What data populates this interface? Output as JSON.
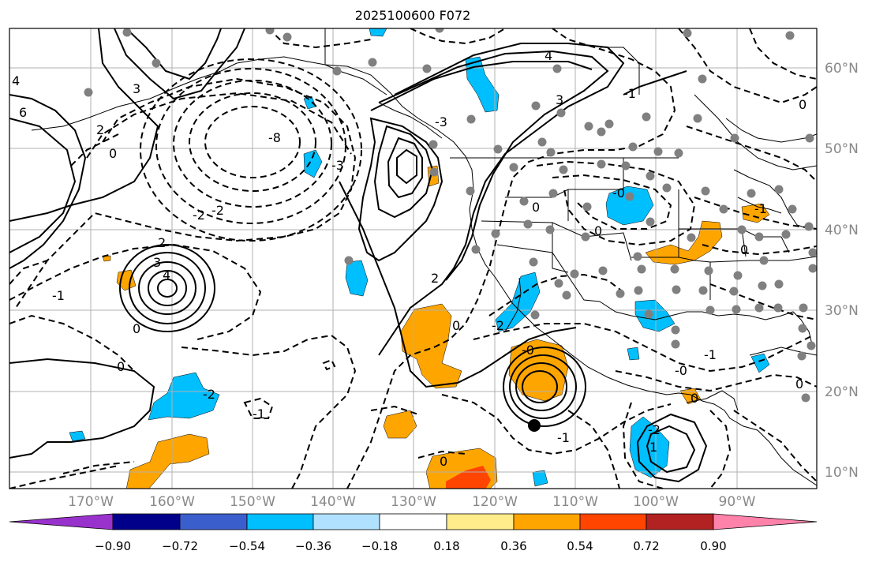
{
  "title": "2025100600 F072",
  "longitude_labels": [
    "170°W",
    "160°W",
    "150°W",
    "140°W",
    "130°W",
    "120°W",
    "110°W",
    "100°W",
    "90°W"
  ],
  "latitude_labels": [
    "60°N",
    "50°N",
    "40°N",
    "30°N",
    "20°N",
    "10°N"
  ],
  "colorbar": {
    "ticks": [
      "−0.90",
      "−0.72",
      "−0.54",
      "−0.36",
      "−0.18",
      "0.18",
      "0.36",
      "0.54",
      "0.72",
      "0.90"
    ],
    "colors": [
      "#9932cc",
      "#00008b",
      "#3a5fcd",
      "#00bfff",
      "#b0e2ff",
      "#ffffff",
      "#ffec8b",
      "#ffa500",
      "#ff4500",
      "#b22222",
      "#ff82ab"
    ]
  },
  "contour_labels": [
    "6",
    "4",
    "3",
    "2",
    "0",
    "-8",
    "-3",
    "-2",
    "2",
    "4",
    "3",
    "0",
    "-1",
    "-2",
    "-1",
    "0",
    "2",
    "-3",
    "0",
    "-2",
    "0",
    "-1",
    "-1",
    "-0",
    "-2",
    "3",
    "4",
    "-1",
    "0",
    "0",
    "-0",
    "-2",
    "1",
    "0",
    "-0",
    "0",
    "-1",
    "0",
    "0"
  ],
  "shading_colors": {
    "negative": "#00bfff",
    "positive": "#ffa500",
    "strong_positive": "#ff4500"
  },
  "station_color": "#808080",
  "tc_marker_color": "#000000"
}
